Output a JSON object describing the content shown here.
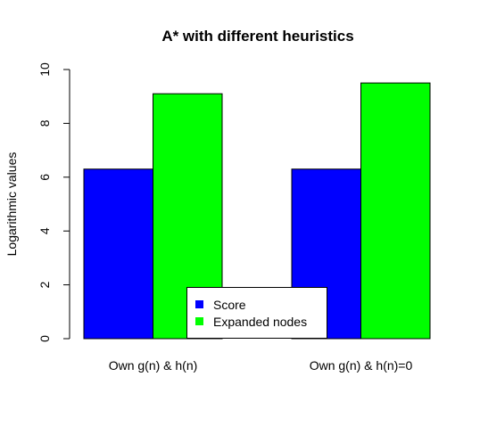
{
  "chart_data": {
    "type": "bar",
    "title": "A* with different heuristics",
    "xlabel": "",
    "ylabel": "Logarithmic values",
    "categories": [
      "Own g(n) & h(n)",
      "Own g(n) & h(n)=0"
    ],
    "series": [
      {
        "name": "Score",
        "color": "#0000ff",
        "values": [
          6.3,
          6.3
        ]
      },
      {
        "name": "Expanded nodes",
        "color": "#00ff00",
        "values": [
          9.1,
          9.5
        ]
      }
    ],
    "ylim": [
      0,
      10
    ],
    "yticks": [
      0,
      2,
      4,
      6,
      8,
      10
    ],
    "grid": false,
    "legend_position": "bottom-center"
  }
}
